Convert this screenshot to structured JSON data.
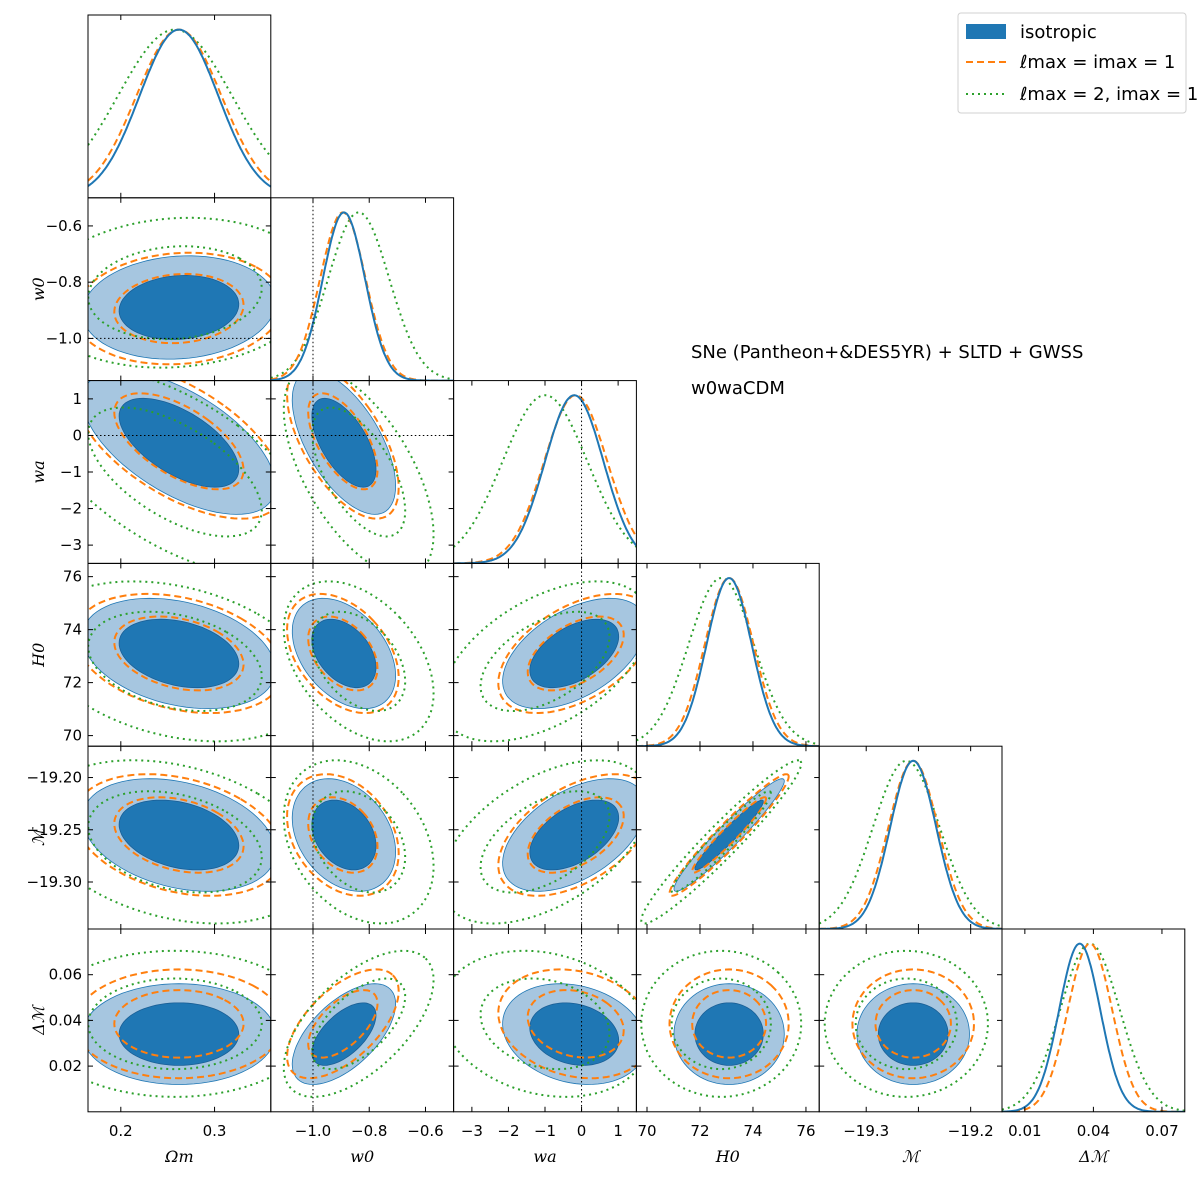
{
  "chart_data": {
    "type": "corner-plot",
    "parameters": [
      {
        "key": "Om",
        "label": "Ωm",
        "range": [
          0.165,
          0.36
        ],
        "ticks": [
          0.2,
          0.3
        ],
        "tick_labels": [
          "0.2",
          "0.3"
        ],
        "mean": 0.262,
        "sd": 0.042
      },
      {
        "key": "w0",
        "label": "w0",
        "range": [
          -1.15,
          -0.5
        ],
        "ticks": [
          -1.0,
          -0.8,
          -0.6
        ],
        "tick_labels": [
          "−1.0",
          "−0.8",
          "−0.6"
        ],
        "mean": -0.89,
        "sd": 0.075
      },
      {
        "key": "wa",
        "label": "wa",
        "range": [
          -3.5,
          1.5
        ],
        "ticks": [
          -3,
          -2,
          -1,
          0,
          1
        ],
        "tick_labels": [
          "−3",
          "−2",
          "−1",
          "0",
          "1"
        ],
        "mean": -0.2,
        "sd": 0.8
      },
      {
        "key": "H0",
        "label": "H0",
        "range": [
          69.6,
          76.5
        ],
        "ticks": [
          70,
          72,
          74,
          76
        ],
        "tick_labels": [
          "70",
          "72",
          "74",
          "76"
        ],
        "mean": 73.1,
        "sd": 0.85
      },
      {
        "key": "M",
        "label": "ℳ",
        "range": [
          -19.345,
          -19.17
        ],
        "ticks": [
          -19.3,
          -19.25,
          -19.2
        ],
        "tick_labels": [
          "−19.30",
          "−19.25",
          "−19.20"
        ],
        "x_tick_labels": [
          "−19.3",
          "",
          "−19.2"
        ],
        "mean": -19.255,
        "sd": 0.022
      },
      {
        "key": "dM",
        "label": "Δℳ",
        "range": [
          0.0,
          0.08
        ],
        "ticks": [
          0.02,
          0.04,
          0.06
        ],
        "tick_labels": [
          "0.02",
          "0.04",
          "0.06"
        ],
        "x_ticks": [
          0.01,
          0.04,
          0.07
        ],
        "x_tick_labels": [
          "0.01",
          "0.04",
          "0.07"
        ],
        "mean": 0.034,
        "sd": 0.009
      }
    ],
    "reference_lines": {
      "w0": -1.0,
      "wa": 0.0
    },
    "series": [
      {
        "name": "isotropic",
        "style": "filled",
        "color": "#1f77b4"
      },
      {
        "name": "ℓmax = imax = 1",
        "style": "dashed",
        "color": "#ff7f0e"
      },
      {
        "name": "ℓmax = 2, imax = 1",
        "style": "dotted",
        "color": "#2ca02c"
      }
    ],
    "correlations": {
      "w0|Om": 0.1,
      "wa|Om": -0.6,
      "wa|w0": -0.6,
      "H0|Om": -0.3,
      "H0|w0": -0.4,
      "H0|wa": 0.5,
      "M|Om": -0.3,
      "M|w0": -0.3,
      "M|wa": 0.5,
      "M|H0": 0.96,
      "dM|Om": 0.0,
      "dM|w0": 0.6,
      "dM|wa": -0.2,
      "dM|H0": 0.0,
      "dM|M": 0.0
    },
    "annotations": [
      "SNe (Pantheon+&DES5YR) + SLTD + GWSS",
      "w0waCDM"
    ],
    "legend_position": "top-right"
  },
  "colors": {
    "isotropic_fill_inner": "#1f77b4",
    "isotropic_fill_outer": "#a6c6e0",
    "dashed": "#ff7f0e",
    "dotted": "#2ca02c"
  }
}
